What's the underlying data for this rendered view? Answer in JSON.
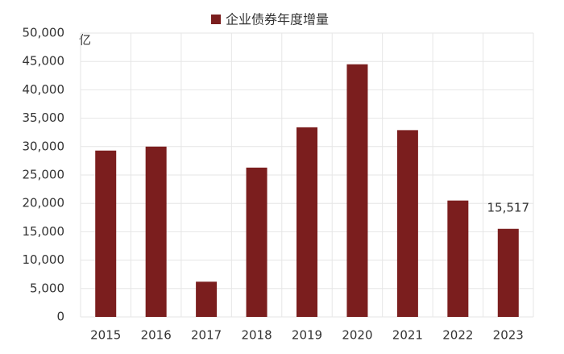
{
  "chart_data": {
    "type": "bar",
    "legend": "企业债券年度增量",
    "unit_label": "亿",
    "categories": [
      "2015",
      "2016",
      "2017",
      "2018",
      "2019",
      "2020",
      "2021",
      "2022",
      "2023"
    ],
    "values": [
      29300,
      30000,
      6200,
      26300,
      33400,
      44500,
      32900,
      20500,
      15517
    ],
    "value_labels": [
      null,
      null,
      null,
      null,
      null,
      null,
      null,
      null,
      "15,517"
    ],
    "color": "#7b1e1e",
    "ylim": [
      0,
      50000
    ],
    "yticks": [
      0,
      {
        "value": 5000,
        "label": "5,000"
      },
      {
        "value": 10000,
        "label": "10,000"
      },
      {
        "value": 15000,
        "label": "15,000"
      },
      {
        "value": 20000,
        "label": "20,000"
      },
      {
        "value": 25000,
        "label": "25,000"
      },
      {
        "value": 30000,
        "label": "30,000"
      },
      {
        "value": 35000,
        "label": "35,000"
      },
      {
        "value": 40000,
        "label": "40,000"
      },
      {
        "value": 45000,
        "label": "45,000"
      },
      {
        "value": 50000,
        "label": "50,000"
      }
    ],
    "grid": true
  }
}
